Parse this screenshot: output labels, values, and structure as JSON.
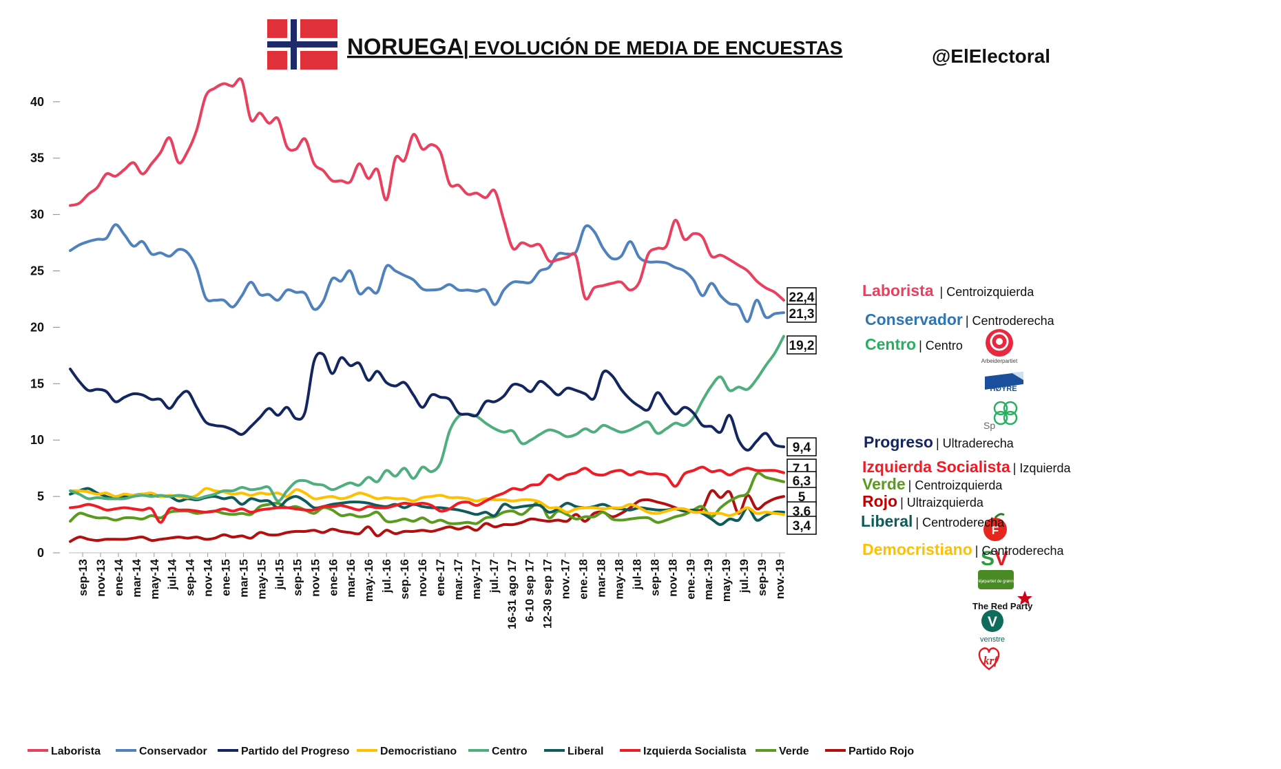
{
  "header": {
    "title_country": "NORUEGA",
    "title_rest": "| EVOLUCIÓN DE MEDIA DE ENCUESTAS",
    "handle": "@ElElectoral"
  },
  "colors": {
    "laborista": "#e8405e",
    "conservador": "#4f81bd",
    "progreso": "#142660",
    "democristiano": "#ffc000",
    "centro": "#4fae7e",
    "liberal": "#0f5a5a",
    "socialista": "#ee1c25",
    "verde": "#5a9a1e",
    "rojo": "#b30f0f"
  },
  "chart_data": {
    "type": "line",
    "ylim": [
      0,
      42
    ],
    "yticks": [
      0,
      5,
      10,
      15,
      20,
      25,
      30,
      35,
      40
    ],
    "grid": false,
    "legend_position": "bottom",
    "x_tick_labels": [
      "sep-13",
      "nov-13",
      "ene-14",
      "mar-14",
      "may-14",
      "jul-14",
      "sep-14",
      "nov-14",
      "ene-15",
      "mar-15",
      "may-15",
      "jul-15",
      "sep-15",
      "nov-15",
      "ene-16",
      "mar-16",
      "may.-16",
      "jul.-16",
      "sep.-16",
      "nov-16",
      "ene-17",
      "mar.-17",
      "may-17",
      "jul.-17",
      "16-31 ago 17",
      "6-10 sep 17",
      "12-30 sep 17",
      "nov.-17",
      "ene.-18",
      "mar-18",
      "may-18",
      "jul-18",
      "sep-18",
      "nov-18",
      "ene.-19",
      "mar.-19",
      "may.-19",
      "jul.-19",
      "sep-19",
      "nov.-19"
    ],
    "series": [
      {
        "key": "laborista",
        "name": "Laborista",
        "final": "22,4",
        "values": [
          30.8,
          31.0,
          31.8,
          32.4,
          33.6,
          33.4,
          34.0,
          34.6,
          33.6,
          34.5,
          35.5,
          36.8,
          34.6,
          35.6,
          37.5,
          40.5,
          41.2,
          41.6,
          41.4,
          41.9,
          38.4,
          39.0,
          38.1,
          38.5,
          36.0,
          35.8,
          36.7,
          34.5,
          33.9,
          33.0,
          33.0,
          32.9,
          34.5,
          33.2,
          34.0,
          31.3,
          35.0,
          34.8,
          37.1,
          35.8,
          36.2,
          35.5,
          32.7,
          32.6,
          31.8,
          31.9,
          31.5,
          32.1,
          29.5,
          27.0,
          27.5,
          27.2,
          27.3,
          25.9,
          26.0,
          26.2,
          26.3,
          22.6,
          23.5,
          23.7,
          23.9,
          24.0,
          23.3,
          24.0,
          26.5,
          27.0,
          27.2,
          29.5,
          27.8,
          28.3,
          28.0,
          26.3,
          26.4,
          26.0,
          25.5,
          25.0,
          24.1,
          23.5,
          23.1,
          22.4
        ]
      },
      {
        "key": "conservador",
        "name": "Conservador",
        "final": "21,3",
        "values": [
          26.8,
          27.3,
          27.6,
          27.8,
          27.9,
          29.1,
          28.2,
          27.2,
          27.6,
          26.5,
          26.6,
          26.3,
          26.9,
          26.6,
          25.2,
          22.6,
          22.4,
          22.4,
          21.8,
          22.8,
          24.0,
          22.9,
          22.9,
          22.4,
          23.3,
          23.1,
          23.0,
          21.6,
          22.3,
          24.3,
          24.1,
          25.0,
          23.0,
          23.5,
          23.1,
          25.4,
          25.0,
          24.6,
          24.2,
          23.4,
          23.3,
          23.4,
          23.8,
          23.3,
          23.3,
          23.2,
          23.3,
          22.0,
          23.3,
          24.0,
          24.0,
          24.0,
          25.0,
          25.3,
          26.5,
          26.5,
          26.7,
          28.9,
          28.5,
          27.0,
          26.1,
          26.3,
          27.6,
          26.2,
          25.8,
          25.8,
          25.7,
          25.3,
          25.0,
          24.2,
          22.8,
          23.9,
          22.8,
          22.1,
          21.9,
          20.5,
          22.4,
          20.9,
          21.2,
          21.3
        ]
      },
      {
        "key": "progreso",
        "name": "Partido del Progreso",
        "final": "9,4",
        "values": [
          16.3,
          15.2,
          14.4,
          14.5,
          14.3,
          13.4,
          13.8,
          14.1,
          14.0,
          13.6,
          13.6,
          12.8,
          13.8,
          14.3,
          12.9,
          11.6,
          11.3,
          11.2,
          10.9,
          10.5,
          11.2,
          12.0,
          12.8,
          12.2,
          12.9,
          11.9,
          12.5,
          17.0,
          17.6,
          15.9,
          17.3,
          16.6,
          16.8,
          15.3,
          16.1,
          15.1,
          14.8,
          15.1,
          14.0,
          12.9,
          14.0,
          13.8,
          13.6,
          12.4,
          12.3,
          12.2,
          13.4,
          13.4,
          13.9,
          14.9,
          14.8,
          14.3,
          15.2,
          14.7,
          14.0,
          14.6,
          14.4,
          14.1,
          13.7,
          16.0,
          15.7,
          14.5,
          13.6,
          13.0,
          12.7,
          14.2,
          13.2,
          12.3,
          12.9,
          12.4,
          11.3,
          11.2,
          10.7,
          12.2,
          10.0,
          9.1,
          9.9,
          10.6,
          9.6,
          9.4
        ]
      },
      {
        "key": "democristiano",
        "name": "Democristiano",
        "final": "3,4",
        "values": [
          5.5,
          5.5,
          5.4,
          5.2,
          5.3,
          5.0,
          5.2,
          5.1,
          5.2,
          5.3,
          5.0,
          5.1,
          5.0,
          4.9,
          5.1,
          5.7,
          5.5,
          5.4,
          5.2,
          5.3,
          5.1,
          5.3,
          5.2,
          5.3,
          5.0,
          5.6,
          5.3,
          4.8,
          4.9,
          5.0,
          4.8,
          5.0,
          5.3,
          5.1,
          4.8,
          4.9,
          4.8,
          4.8,
          4.6,
          4.9,
          5.0,
          5.1,
          4.9,
          4.9,
          4.8,
          4.6,
          4.8,
          4.7,
          4.7,
          4.6,
          4.7,
          4.7,
          4.5,
          4.0,
          4.0,
          3.6,
          3.9,
          4.0,
          4.0,
          3.9,
          4.0,
          4.0,
          4.3,
          4.0,
          3.6,
          3.5,
          3.7,
          3.9,
          3.9,
          3.6,
          3.6,
          3.5,
          3.5,
          3.3,
          3.6,
          4.0,
          3.5,
          3.6,
          3.5,
          3.4
        ]
      },
      {
        "key": "centro",
        "name": "Centro",
        "final": "19,2",
        "values": [
          5.5,
          5.2,
          4.8,
          4.9,
          4.8,
          4.8,
          4.8,
          5.0,
          5.1,
          5.0,
          5.1,
          5.0,
          5.1,
          5.0,
          4.8,
          5.0,
          5.2,
          5.5,
          5.5,
          5.8,
          5.6,
          5.7,
          5.8,
          4.6,
          5.5,
          6.3,
          6.4,
          6.1,
          6.0,
          5.6,
          5.9,
          6.2,
          6.0,
          6.7,
          6.3,
          7.3,
          6.8,
          7.5,
          6.6,
          7.6,
          7.2,
          8.0,
          10.8,
          12.1,
          12.3,
          12.1,
          11.5,
          11.0,
          10.7,
          10.8,
          9.7,
          10.0,
          10.5,
          10.9,
          10.7,
          10.3,
          10.5,
          11.0,
          10.7,
          11.3,
          11.0,
          10.7,
          10.9,
          11.3,
          11.6,
          10.6,
          11.0,
          11.5,
          11.3,
          12.0,
          13.5,
          14.8,
          15.6,
          14.4,
          14.7,
          14.5,
          15.4,
          16.6,
          17.7,
          19.2
        ]
      },
      {
        "key": "liberal",
        "name": "Liberal",
        "final": "3,6",
        "values": [
          5.2,
          5.5,
          5.7,
          5.3,
          5.0,
          4.8,
          5.0,
          5.1,
          5.2,
          5.1,
          5.0,
          5.0,
          4.6,
          4.8,
          4.7,
          4.9,
          5.0,
          4.8,
          4.9,
          4.3,
          4.8,
          4.6,
          4.6,
          4.0,
          4.7,
          5.0,
          4.6,
          4.0,
          4.1,
          4.3,
          4.4,
          4.5,
          4.5,
          4.4,
          4.2,
          4.1,
          4.3,
          4.0,
          4.3,
          4.1,
          4.0,
          4.0,
          3.9,
          3.8,
          3.6,
          3.4,
          3.6,
          3.3,
          4.3,
          4.0,
          4.1,
          4.2,
          4.2,
          3.6,
          3.9,
          4.4,
          4.1,
          4.0,
          4.1,
          4.3,
          4.0,
          3.9,
          3.8,
          4.0,
          3.9,
          3.8,
          3.8,
          3.9,
          3.7,
          3.8,
          3.5,
          3.0,
          2.5,
          3.0,
          2.9,
          4.0,
          2.9,
          3.3,
          3.6,
          3.6
        ]
      },
      {
        "key": "socialista",
        "name": "Izquierda Socialista",
        "final": "7,1",
        "values": [
          4.0,
          4.1,
          4.3,
          4.1,
          3.8,
          3.9,
          4.0,
          3.9,
          3.8,
          3.9,
          2.7,
          3.9,
          3.8,
          3.8,
          3.7,
          3.6,
          3.7,
          3.9,
          3.7,
          3.9,
          3.6,
          3.8,
          3.9,
          4.0,
          4.0,
          3.9,
          3.8,
          3.8,
          4.1,
          4.1,
          4.2,
          4.0,
          3.8,
          4.1,
          4.0,
          4.0,
          4.2,
          4.4,
          4.3,
          4.4,
          4.2,
          3.7,
          3.9,
          4.4,
          4.5,
          4.2,
          4.6,
          5.0,
          5.3,
          5.7,
          5.6,
          6.0,
          6.1,
          6.9,
          6.5,
          6.9,
          7.1,
          7.5,
          7.0,
          6.9,
          7.2,
          7.3,
          6.9,
          7.2,
          7.0,
          7.0,
          6.8,
          5.9,
          7.0,
          7.3,
          7.6,
          7.2,
          7.3,
          6.9,
          7.3,
          7.5,
          7.3,
          7.3,
          7.3,
          7.1
        ]
      },
      {
        "key": "verde",
        "name": "Verde",
        "final": "6,3",
        "values": [
          2.8,
          3.5,
          3.3,
          3.1,
          3.1,
          2.9,
          3.1,
          3.1,
          3.0,
          3.3,
          3.1,
          3.6,
          3.7,
          3.7,
          3.5,
          3.6,
          3.7,
          3.5,
          3.4,
          3.5,
          3.4,
          4.1,
          4.3,
          4.4,
          4.0,
          4.1,
          3.8,
          3.5,
          4.0,
          3.8,
          3.3,
          3.4,
          3.2,
          3.3,
          3.6,
          2.8,
          2.8,
          3.0,
          2.8,
          3.1,
          2.7,
          2.9,
          2.6,
          2.6,
          2.7,
          2.6,
          3.1,
          3.2,
          3.6,
          3.7,
          3.4,
          4.0,
          4.5,
          3.1,
          3.7,
          3.4,
          3.0,
          3.2,
          3.2,
          3.6,
          3.0,
          2.9,
          3.0,
          3.1,
          3.1,
          2.7,
          2.9,
          3.2,
          3.4,
          3.8,
          4.1,
          3.2,
          4.0,
          4.6,
          5.0,
          5.3,
          7.0,
          6.7,
          6.5,
          6.3
        ]
      },
      {
        "key": "rojo",
        "name": "Partido Rojo",
        "final": "5",
        "values": [
          1.0,
          1.4,
          1.2,
          1.1,
          1.2,
          1.2,
          1.2,
          1.3,
          1.4,
          1.1,
          1.2,
          1.3,
          1.4,
          1.3,
          1.4,
          1.2,
          1.3,
          1.6,
          1.4,
          1.5,
          1.3,
          1.8,
          1.6,
          1.6,
          1.8,
          1.9,
          1.9,
          2.0,
          1.8,
          2.1,
          1.9,
          1.8,
          1.7,
          2.3,
          1.5,
          2.0,
          1.7,
          1.9,
          1.9,
          2.0,
          1.9,
          2.1,
          2.3,
          2.1,
          2.3,
          2.0,
          2.6,
          2.3,
          2.5,
          2.5,
          2.7,
          3.0,
          2.9,
          2.8,
          2.9,
          2.8,
          3.4,
          2.8,
          3.5,
          3.6,
          3.2,
          3.5,
          4.0,
          4.6,
          4.7,
          4.5,
          4.3,
          4.0,
          3.7,
          3.8,
          3.9,
          5.5,
          4.9,
          5.4,
          3.5,
          5.1,
          3.9,
          4.4,
          4.8,
          5.0
        ]
      }
    ]
  },
  "labels": {
    "value_boxes": [
      "22,4",
      "21,3",
      "19,2",
      "9,4",
      "7,1",
      "6,3",
      "5",
      "3,6",
      "3,4"
    ],
    "right_panel": [
      {
        "name": "Laborista",
        "ideology": " | Centroizquierda",
        "color": "#e8405e"
      },
      {
        "name": "Conservador",
        "ideology": "| Centroderecha",
        "color": "#2e75b6"
      },
      {
        "name": "Centro",
        "ideology": "| Centro",
        "color": "#27ae60"
      },
      {
        "name": "Progreso",
        "ideology": "| Ultraderecha",
        "color": "#142660"
      },
      {
        "name": "Izquierda Socialista",
        "ideology": "| Izquierda",
        "color": "#ee1c25"
      },
      {
        "name": "Verde",
        "ideology": "| Centroizquierda",
        "color": "#5a9a1e"
      },
      {
        "name": "Rojo",
        "ideology": "| Ultraizquierda",
        "color": "#c00000"
      },
      {
        "name": "Liberal",
        "ideology": "| Centroderecha",
        "color": "#0f5a5a"
      },
      {
        "name": "Democristiano",
        "ideology": "| Centroderecha",
        "color": "#ffc000"
      }
    ],
    "logo_texts": {
      "ap": "Arbeiderpartiet",
      "hoyre": "HØYRE",
      "sp": "Sp",
      "mdg": "miljøpartiet de grønne",
      "rodt": "The Red Party",
      "venstre": "venstre"
    }
  },
  "legend": [
    "Laborista",
    "Conservador",
    "Partido del Progreso",
    "Democristiano",
    "Centro",
    "Liberal",
    "Izquierda Socialista",
    "Verde",
    "Partido Rojo"
  ]
}
